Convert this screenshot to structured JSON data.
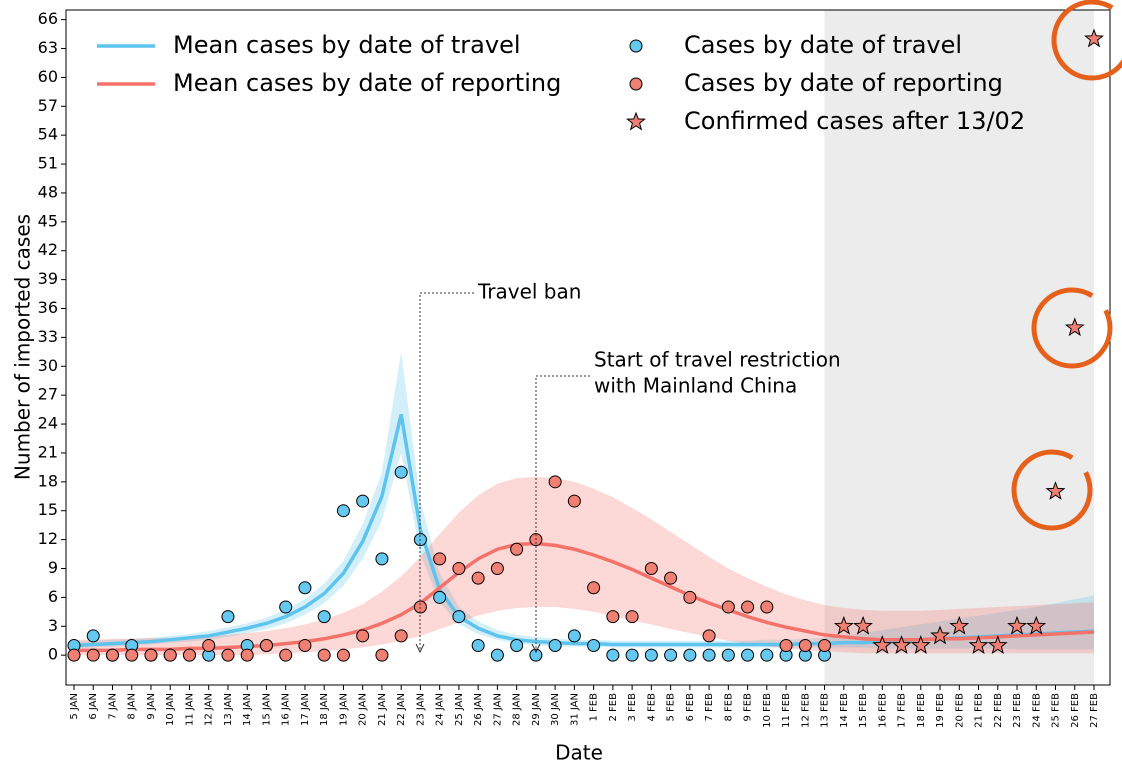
{
  "chart_data": {
    "type": "line",
    "xlabel": "Date",
    "ylabel": "Number of imported cases",
    "categories": [
      "5 JAN",
      "6 JAN",
      "7 JAN",
      "8 JAN",
      "9 JAN",
      "10 JAN",
      "11 JAN",
      "12 JAN",
      "13 JAN",
      "14 JAN",
      "15 JAN",
      "16 JAN",
      "17 JAN",
      "18 JAN",
      "19 JAN",
      "20 JAN",
      "21 JAN",
      "22 JAN",
      "23 JAN",
      "24 JAN",
      "25 JAN",
      "26 JAN",
      "27 JAN",
      "28 JAN",
      "29 JAN",
      "30 JAN",
      "31 JAN",
      "1 FEB",
      "2 FEB",
      "3 FEB",
      "4 FEB",
      "5 FEB",
      "6 FEB",
      "7 FEB",
      "8 FEB",
      "9 FEB",
      "10 FEB",
      "11 FEB",
      "12 FEB",
      "13 FEB",
      "14 FEB",
      "15 FEB",
      "16 FEB",
      "17 FEB",
      "18 FEB",
      "19 FEB",
      "20 FEB",
      "21 FEB",
      "22 FEB",
      "23 FEB",
      "24 FEB",
      "25 FEB",
      "26 FEB",
      "27 FEB"
    ],
    "ylim": [
      -3.1,
      67
    ],
    "yticks": [
      0,
      3,
      6,
      9,
      12,
      15,
      18,
      21,
      24,
      27,
      30,
      33,
      36,
      39,
      42,
      45,
      48,
      51,
      54,
      57,
      60,
      63,
      66
    ],
    "series": [
      {
        "name": "Mean cases by date of travel",
        "type": "line",
        "color": "#5ec4ee",
        "values": [
          1.0,
          1.1,
          1.2,
          1.3,
          1.4,
          1.6,
          1.8,
          2.0,
          2.4,
          2.8,
          3.3,
          4.0,
          5.0,
          6.4,
          8.5,
          11.8,
          16.5,
          25,
          13,
          6.8,
          4,
          2.8,
          2,
          1.6,
          1.4,
          1.3,
          1.2,
          1.2,
          1.1,
          1.1,
          1.1,
          1.1,
          1.1,
          1.1,
          1.1,
          1.1,
          1.1,
          1.1,
          1.2,
          1.2,
          1.3,
          1.3,
          1.4,
          1.5,
          1.6,
          1.7,
          1.8,
          1.9,
          2.0,
          2.1,
          2.2,
          2.3,
          2.4,
          2.5
        ],
        "upper": [
          1.4,
          1.5,
          1.6,
          1.7,
          1.8,
          2.0,
          2.2,
          2.5,
          2.9,
          3.3,
          3.9,
          4.7,
          5.8,
          7.4,
          9.8,
          13.6,
          19,
          31.5,
          16,
          8.5,
          5,
          3.5,
          2.6,
          2.1,
          1.9,
          1.7,
          1.6,
          1.6,
          1.5,
          1.5,
          1.5,
          1.5,
          1.5,
          1.5,
          1.5,
          1.5,
          1.6,
          1.6,
          1.7,
          1.8,
          2.0,
          2.3,
          2.6,
          2.9,
          3.2,
          3.5,
          3.8,
          4.1,
          4.4,
          4.7,
          5.0,
          5.4,
          5.8,
          6.2
        ],
        "lower": [
          0.7,
          0.8,
          0.9,
          1.0,
          1.1,
          1.3,
          1.4,
          1.6,
          1.9,
          2.3,
          2.7,
          3.3,
          4.2,
          5.4,
          7.2,
          10,
          14,
          21,
          10.5,
          5.5,
          3.2,
          2.2,
          1.6,
          1.2,
          1.0,
          0.9,
          0.9,
          0.9,
          0.8,
          0.8,
          0.8,
          0.8,
          0.8,
          0.8,
          0.8,
          0.8,
          0.8,
          0.8,
          0.8,
          0.8,
          0.8,
          0.8,
          0.7,
          0.7,
          0.7,
          0.7,
          0.7,
          0.7,
          0.7,
          0.6,
          0.6,
          0.6,
          0.6,
          0.6
        ]
      },
      {
        "name": "Mean cases by date of reporting",
        "type": "line",
        "color": "#f4726a",
        "values": [
          0.5,
          0.5,
          0.5,
          0.6,
          0.6,
          0.6,
          0.7,
          0.7,
          0.8,
          0.9,
          1.0,
          1.2,
          1.4,
          1.7,
          2.1,
          2.6,
          3.3,
          4.2,
          5.4,
          7.0,
          8.6,
          10.0,
          11.0,
          11.5,
          11.6,
          11.4,
          11.0,
          10.4,
          9.7,
          8.9,
          8.0,
          7.1,
          6.2,
          5.4,
          4.7,
          4.0,
          3.4,
          2.9,
          2.5,
          2.1,
          1.9,
          1.7,
          1.6,
          1.6,
          1.6,
          1.7,
          1.7,
          1.8,
          1.9,
          2.0,
          2.1,
          2.2,
          2.3,
          2.4
        ],
        "upper": [
          1.6,
          1.6,
          1.7,
          1.7,
          1.8,
          1.8,
          1.9,
          2.0,
          2.1,
          2.3,
          2.5,
          2.8,
          3.2,
          3.7,
          4.4,
          5.3,
          6.6,
          8.2,
          10.2,
          12.6,
          14.8,
          16.6,
          17.8,
          18.4,
          18.5,
          18.4,
          18.0,
          17.3,
          16.4,
          15.3,
          14.1,
          12.8,
          11.5,
          10.2,
          9.0,
          8.0,
          7.1,
          6.3,
          5.7,
          5.2,
          4.9,
          4.7,
          4.6,
          4.6,
          4.6,
          4.7,
          4.8,
          4.9,
          5.0,
          5.1,
          5.2,
          5.3,
          5.4,
          5.5
        ],
        "lower": [
          0,
          0,
          0,
          0,
          0,
          0,
          0,
          0,
          0,
          0,
          0.1,
          0.2,
          0.3,
          0.4,
          0.6,
          0.8,
          1.1,
          1.5,
          2.0,
          2.7,
          3.4,
          4.1,
          4.6,
          4.9,
          5.0,
          5.0,
          4.8,
          4.5,
          4.1,
          3.6,
          3.2,
          2.7,
          2.3,
          1.9,
          1.5,
          1.2,
          0.9,
          0.7,
          0.5,
          0.4,
          0.3,
          0.2,
          0.2,
          0.2,
          0.2,
          0.2,
          0.2,
          0.2,
          0.2,
          0.2,
          0.2,
          0.2,
          0.2,
          0.2
        ]
      },
      {
        "name": "Cases by date of travel",
        "type": "scatter",
        "marker": "circle",
        "color": "#64c8f0",
        "values": [
          1,
          2,
          0,
          1,
          0,
          0,
          0,
          0,
          4,
          1,
          1,
          5,
          7,
          4,
          15,
          16,
          10,
          19,
          12,
          6,
          4,
          1,
          0,
          1,
          0,
          1,
          2,
          1,
          0,
          0,
          0,
          0,
          0,
          0,
          0,
          0,
          0,
          0,
          0,
          0,
          null,
          null,
          null,
          null,
          null,
          null,
          null,
          null,
          null,
          null,
          null,
          null,
          null,
          null
        ]
      },
      {
        "name": "Cases by date of reporting",
        "type": "scatter",
        "marker": "circle",
        "color": "#f08074",
        "values": [
          0,
          0,
          0,
          0,
          0,
          0,
          0,
          1,
          0,
          0,
          1,
          0,
          1,
          0,
          0,
          2,
          0,
          2,
          5,
          10,
          9,
          8,
          9,
          11,
          12,
          18,
          16,
          7,
          4,
          4,
          9,
          8,
          6,
          2,
          5,
          5,
          5,
          1,
          1,
          1,
          null,
          null,
          null,
          null,
          null,
          null,
          null,
          null,
          null,
          null,
          null,
          null,
          null,
          null
        ]
      },
      {
        "name": "Confirmed cases after 13/02",
        "type": "scatter",
        "marker": "star",
        "color": "#f08074",
        "values": [
          null,
          null,
          null,
          null,
          null,
          null,
          null,
          null,
          null,
          null,
          null,
          null,
          null,
          null,
          null,
          null,
          null,
          null,
          null,
          null,
          null,
          null,
          null,
          null,
          null,
          null,
          null,
          null,
          null,
          null,
          null,
          null,
          null,
          null,
          null,
          null,
          null,
          null,
          null,
          null,
          3,
          3,
          1,
          1,
          1,
          2,
          3,
          1,
          1,
          3,
          3,
          17,
          34,
          64
        ]
      }
    ],
    "annotations": [
      [
        "Travel ban"
      ],
      [
        "Start of travel restriction",
        "with Mainland China"
      ]
    ]
  }
}
